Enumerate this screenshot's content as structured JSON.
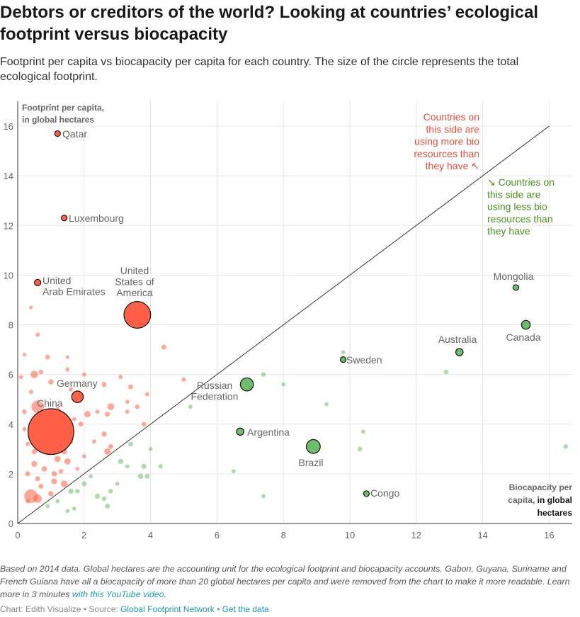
{
  "title": "Debtors or creditors of the world? Looking at countries’ ecological footprint versus biocapacity",
  "subtitle": "Footprint per capita vs biocapacity per capita for each country. The size of the circle represents the total ecological footprint.",
  "note_text": "Based on 2014 data. Global hectares are the accounting unit for the ecological footprint and biocapacity accounts. Gabon, Guyana, Suriname and French Guiana have all a biocapacity of more than 20 global hectares per capita and were removed from the chart to make it more readable. Learn more in 3 minutes ",
  "note_link": "with this YouTube video",
  "note_end": ".",
  "credit": {
    "chart_by": "Chart: Edith Visualize",
    "sep1": " • Source: ",
    "source": "Global Footprint Network",
    "sep2": " • ",
    "data_link": "Get the data"
  },
  "colors": {
    "red": "#ff6047",
    "green": "#6cbd6c",
    "red_text": "#e04f3b",
    "green_text": "#4a8f1e",
    "diagonal": "#333333"
  },
  "chart_data": {
    "type": "scatter",
    "title": "",
    "xlabel": "Biocapacity per capita, in global hectares",
    "ylabel": "Footprint per capita, in global hectares",
    "xlabel_lines": [
      "Biocapacity per",
      "capita,",
      "in global",
      "hectares"
    ],
    "ylabel_lines": [
      "Footprint per capita,",
      "in global hectares"
    ],
    "xlim": [
      0,
      16.6
    ],
    "ylim": [
      0,
      17
    ],
    "xticks": [
      0,
      2,
      4,
      6,
      8,
      10,
      12,
      14,
      16
    ],
    "yticks": [
      0,
      2,
      4,
      6,
      8,
      10,
      12,
      14,
      16
    ],
    "grid": true,
    "diagonal": [
      [
        0,
        0
      ],
      [
        16,
        16
      ]
    ],
    "annotation_debtor": [
      "Countries on",
      "this side are",
      "using more bio",
      "resources than",
      "they have ↖"
    ],
    "annotation_creditor": [
      "↘ Countries on",
      "this side are",
      "using less bio",
      "resources than",
      "they have"
    ],
    "labeled_points": [
      {
        "name": "Qatar",
        "label_lines": [
          "Qatar"
        ],
        "x": 1.2,
        "y": 15.7,
        "size": 0.45,
        "group": "debtor"
      },
      {
        "name": "Luxembourg",
        "label_lines": [
          "Luxembourg"
        ],
        "x": 1.4,
        "y": 12.3,
        "size": 0.3,
        "group": "debtor"
      },
      {
        "name": "United Arab Emirates",
        "label_lines": [
          "United",
          "Arab Emirates"
        ],
        "x": 0.6,
        "y": 9.7,
        "size": 1.0,
        "group": "debtor"
      },
      {
        "name": "United States of America",
        "label_lines": [
          "United",
          "States of",
          "America"
        ],
        "x": 3.6,
        "y": 8.4,
        "size": 26,
        "group": "debtor"
      },
      {
        "name": "Germany",
        "label_lines": [
          "Germany"
        ],
        "x": 1.8,
        "y": 5.1,
        "size": 4.2,
        "group": "debtor"
      },
      {
        "name": "China",
        "label_lines": [
          "China"
        ],
        "x": 1.0,
        "y": 3.7,
        "size": 80,
        "group": "debtor"
      },
      {
        "name": "Russian Federation",
        "label_lines": [
          "Russian",
          "Federation"
        ],
        "x": 6.9,
        "y": 5.6,
        "size": 5.5,
        "group": "creditor"
      },
      {
        "name": "Argentina",
        "label_lines": [
          "Argentina"
        ],
        "x": 6.7,
        "y": 3.7,
        "size": 1.4,
        "group": "creditor"
      },
      {
        "name": "Brazil",
        "label_lines": [
          "Brazil"
        ],
        "x": 8.9,
        "y": 3.1,
        "size": 6.3,
        "group": "creditor"
      },
      {
        "name": "Congo",
        "label_lines": [
          "Congo"
        ],
        "x": 10.5,
        "y": 1.2,
        "size": 0.3,
        "group": "creditor"
      },
      {
        "name": "Sweden",
        "label_lines": [
          "Sweden"
        ],
        "x": 9.8,
        "y": 6.6,
        "size": 0.6,
        "group": "creditor"
      },
      {
        "name": "Australia",
        "label_lines": [
          "Australia"
        ],
        "x": 13.3,
        "y": 6.9,
        "size": 1.4,
        "group": "creditor"
      },
      {
        "name": "Mongolia",
        "label_lines": [
          "Mongolia"
        ],
        "x": 15.0,
        "y": 9.5,
        "size": 0.4,
        "group": "creditor"
      },
      {
        "name": "Canada",
        "label_lines": [
          "Canada"
        ],
        "x": 15.3,
        "y": 8.0,
        "size": 2.2,
        "group": "creditor"
      }
    ],
    "other_points": [
      [
        0.4,
        1.1,
        6.0
      ],
      [
        0.6,
        1.0,
        2.0
      ],
      [
        0.6,
        4.7,
        5.0
      ],
      [
        0.9,
        4.0,
        3.0
      ],
      [
        0.5,
        6.0,
        1.5
      ],
      [
        0.9,
        3.0,
        1.2
      ],
      [
        1.3,
        3.3,
        1.0
      ],
      [
        1.2,
        2.6,
        1.0
      ],
      [
        1.4,
        1.6,
        1.2
      ],
      [
        1.1,
        1.7,
        0.8
      ],
      [
        0.8,
        2.2,
        0.6
      ],
      [
        0.3,
        2.0,
        0.5
      ],
      [
        0.5,
        2.4,
        0.8
      ],
      [
        0.7,
        1.5,
        0.5
      ],
      [
        0.2,
        4.5,
        0.4
      ],
      [
        0.1,
        5.9,
        0.3
      ],
      [
        0.2,
        6.8,
        0.2
      ],
      [
        0.4,
        8.7,
        0.2
      ],
      [
        0.6,
        7.6,
        0.3
      ],
      [
        0.9,
        6.7,
        0.5
      ],
      [
        0.7,
        6.1,
        0.4
      ],
      [
        1.0,
        5.7,
        0.6
      ],
      [
        1.5,
        6.7,
        0.2
      ],
      [
        1.5,
        6.2,
        0.3
      ],
      [
        2.0,
        6.0,
        0.3
      ],
      [
        2.6,
        5.6,
        0.5
      ],
      [
        2.7,
        4.4,
        0.5
      ],
      [
        2.8,
        4.7,
        1.2
      ],
      [
        2.1,
        4.4,
        1.0
      ],
      [
        1.9,
        4.0,
        0.5
      ],
      [
        1.2,
        4.6,
        0.4
      ],
      [
        1.3,
        4.2,
        0.6
      ],
      [
        1.7,
        4.2,
        0.3
      ],
      [
        2.4,
        4.5,
        0.3
      ],
      [
        3.1,
        5.9,
        0.3
      ],
      [
        3.3,
        4.5,
        0.3
      ],
      [
        3.4,
        5.5,
        0.5
      ],
      [
        3.6,
        4.7,
        0.4
      ],
      [
        3.9,
        5.2,
        0.3
      ],
      [
        4.4,
        7.1,
        0.5
      ],
      [
        3.8,
        4.0,
        0.4
      ],
      [
        3.3,
        4.9,
        0.3
      ],
      [
        5.0,
        5.8,
        0.3
      ],
      [
        2.6,
        3.6,
        0.6
      ],
      [
        2.8,
        3.1,
        0.5
      ],
      [
        2.3,
        3.3,
        0.3
      ],
      [
        2.7,
        2.9,
        1.0
      ],
      [
        2.0,
        2.7,
        0.3
      ],
      [
        1.6,
        3.3,
        0.5
      ],
      [
        1.4,
        2.9,
        0.8
      ],
      [
        1.5,
        2.5,
        1.0
      ],
      [
        1.8,
        2.2,
        0.3
      ],
      [
        0.7,
        3.5,
        0.4
      ],
      [
        0.3,
        3.2,
        0.3
      ],
      [
        0.5,
        2.9,
        0.6
      ],
      [
        1.0,
        1.2,
        0.6
      ],
      [
        1.2,
        0.9,
        0.3
      ],
      [
        0.9,
        0.7,
        0.3
      ],
      [
        0.3,
        0.9,
        0.3
      ],
      [
        0.6,
        1.8,
        0.5
      ],
      [
        1.1,
        2.0,
        0.6
      ],
      [
        1.3,
        2.1,
        0.4
      ],
      [
        0.2,
        3.8,
        0.3
      ],
      [
        1.6,
        5.4,
        0.3
      ],
      [
        0.4,
        5.3,
        0.3
      ],
      [
        1.6,
        1.3,
        0.6
      ],
      [
        1.8,
        1.3,
        0.4
      ],
      [
        2.0,
        1.6,
        0.5
      ],
      [
        2.4,
        1.1,
        0.6
      ],
      [
        2.6,
        1.0,
        0.4
      ],
      [
        2.7,
        0.7,
        0.5
      ],
      [
        1.5,
        0.5,
        0.3
      ],
      [
        1.7,
        0.6,
        0.3
      ],
      [
        3.1,
        2.5,
        0.6
      ],
      [
        3.3,
        2.3,
        0.3
      ],
      [
        3.9,
        1.9,
        0.5
      ],
      [
        3.7,
        1.9,
        0.6
      ],
      [
        3.8,
        2.3,
        0.6
      ],
      [
        2.8,
        1.3,
        0.4
      ],
      [
        4.0,
        3.0,
        0.3
      ],
      [
        3.4,
        3.2,
        0.4
      ],
      [
        5.2,
        4.7,
        0.3
      ],
      [
        4.3,
        2.3,
        0.4
      ],
      [
        7.4,
        6.0,
        0.4
      ],
      [
        8.0,
        5.6,
        0.3
      ],
      [
        9.3,
        4.8,
        0.3
      ],
      [
        9.8,
        6.9,
        0.3
      ],
      [
        6.5,
        2.1,
        0.3
      ],
      [
        7.4,
        1.1,
        0.3
      ],
      [
        10.3,
        3.0,
        0.4
      ],
      [
        10.4,
        3.7,
        0.3
      ],
      [
        12.9,
        6.1,
        0.4
      ],
      [
        16.5,
        3.1,
        0.4
      ],
      [
        3.0,
        1.6,
        0.3
      ],
      [
        2.2,
        1.9,
        0.3
      ]
    ]
  }
}
